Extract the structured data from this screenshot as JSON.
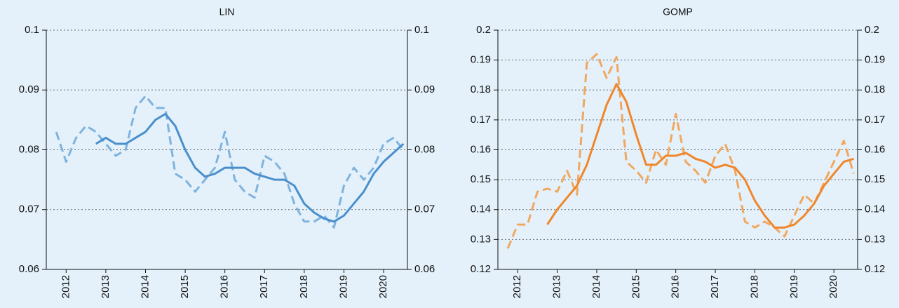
{
  "chart_data": [
    {
      "type": "line",
      "title": "LIN",
      "x": [
        2011.75,
        2012,
        2012.25,
        2012.5,
        2012.75,
        2013,
        2013.25,
        2013.5,
        2013.75,
        2014,
        2014.25,
        2014.5,
        2014.75,
        2015,
        2015.25,
        2015.5,
        2015.75,
        2016,
        2016.25,
        2016.5,
        2016.75,
        2017,
        2017.25,
        2017.5,
        2017.75,
        2018,
        2018.25,
        2018.5,
        2018.75,
        2019,
        2019.25,
        2019.5,
        2019.75,
        2020,
        2020.25,
        2020.5
      ],
      "series": [
        {
          "color": "#7fb3de",
          "dashed": true,
          "values": [
            0.083,
            0.078,
            0.082,
            0.084,
            0.083,
            0.081,
            0.079,
            0.08,
            0.087,
            0.089,
            0.087,
            0.087,
            0.076,
            0.075,
            0.073,
            0.075,
            0.077,
            0.083,
            0.075,
            0.073,
            0.072,
            0.079,
            0.078,
            0.076,
            0.071,
            0.068,
            0.068,
            0.069,
            0.067,
            0.074,
            0.077,
            0.075,
            0.077,
            0.081,
            0.082,
            0.08
          ]
        },
        {
          "color": "#4a8fcc",
          "dashed": false,
          "values": [
            null,
            null,
            null,
            null,
            0.081,
            0.082,
            0.081,
            0.081,
            0.082,
            0.083,
            0.085,
            0.086,
            0.084,
            0.08,
            0.077,
            0.0755,
            0.076,
            0.077,
            0.077,
            0.077,
            0.076,
            0.0755,
            0.075,
            0.075,
            0.074,
            0.071,
            0.0695,
            0.0685,
            0.068,
            0.069,
            0.071,
            0.073,
            0.076,
            0.078,
            0.0795,
            0.081
          ]
        }
      ],
      "xlim": [
        2011.5,
        2020.6
      ],
      "xticks": [
        2012,
        2013,
        2014,
        2015,
        2016,
        2017,
        2018,
        2019,
        2020
      ],
      "ylim": [
        0.06,
        0.1
      ],
      "yticks": [
        0.06,
        0.07,
        0.08,
        0.09,
        0.1
      ],
      "y2lim": [
        0.06,
        0.1
      ],
      "y2ticks": [
        0.06,
        0.07,
        0.08,
        0.09,
        0.1
      ],
      "grid": true
    },
    {
      "type": "line",
      "title": "GOMP",
      "x": [
        2011.75,
        2012,
        2012.25,
        2012.5,
        2012.75,
        2013,
        2013.25,
        2013.5,
        2013.75,
        2014,
        2014.25,
        2014.5,
        2014.75,
        2015,
        2015.25,
        2015.5,
        2015.75,
        2016,
        2016.25,
        2016.5,
        2016.75,
        2017,
        2017.25,
        2017.5,
        2017.75,
        2018,
        2018.25,
        2018.5,
        2018.75,
        2019,
        2019.25,
        2019.5,
        2019.75,
        2020,
        2020.25,
        2020.5
      ],
      "series": [
        {
          "color": "#f0a860",
          "dashed": true,
          "values": [
            0.127,
            0.135,
            0.135,
            0.146,
            0.147,
            0.146,
            0.153,
            0.145,
            0.189,
            0.192,
            0.184,
            0.191,
            0.156,
            0.153,
            0.149,
            0.16,
            0.155,
            0.172,
            0.156,
            0.153,
            0.149,
            0.158,
            0.162,
            0.153,
            0.136,
            0.134,
            0.136,
            0.134,
            0.131,
            0.138,
            0.145,
            0.142,
            0.149,
            0.156,
            0.163,
            0.152
          ]
        },
        {
          "color": "#f0862a",
          "dashed": false,
          "values": [
            null,
            null,
            null,
            null,
            0.135,
            0.14,
            0.144,
            0.148,
            0.155,
            0.165,
            0.175,
            0.182,
            0.176,
            0.165,
            0.155,
            0.155,
            0.158,
            0.158,
            0.159,
            0.157,
            0.156,
            0.154,
            0.155,
            0.154,
            0.15,
            0.143,
            0.138,
            0.134,
            0.134,
            0.135,
            0.138,
            0.142,
            0.148,
            0.152,
            0.156,
            0.157
          ]
        }
      ],
      "xlim": [
        2011.5,
        2020.6
      ],
      "xticks": [
        2012,
        2013,
        2014,
        2015,
        2016,
        2017,
        2018,
        2019,
        2020
      ],
      "ylim": [
        0.12,
        0.2
      ],
      "yticks": [
        0.12,
        0.13,
        0.14,
        0.15,
        0.16,
        0.17,
        0.18,
        0.19,
        0.2
      ],
      "y2lim": [
        0.12,
        0.2
      ],
      "y2ticks": [
        0.12,
        0.13,
        0.14,
        0.15,
        0.16,
        0.17,
        0.18,
        0.19,
        0.2
      ],
      "grid": true
    }
  ]
}
